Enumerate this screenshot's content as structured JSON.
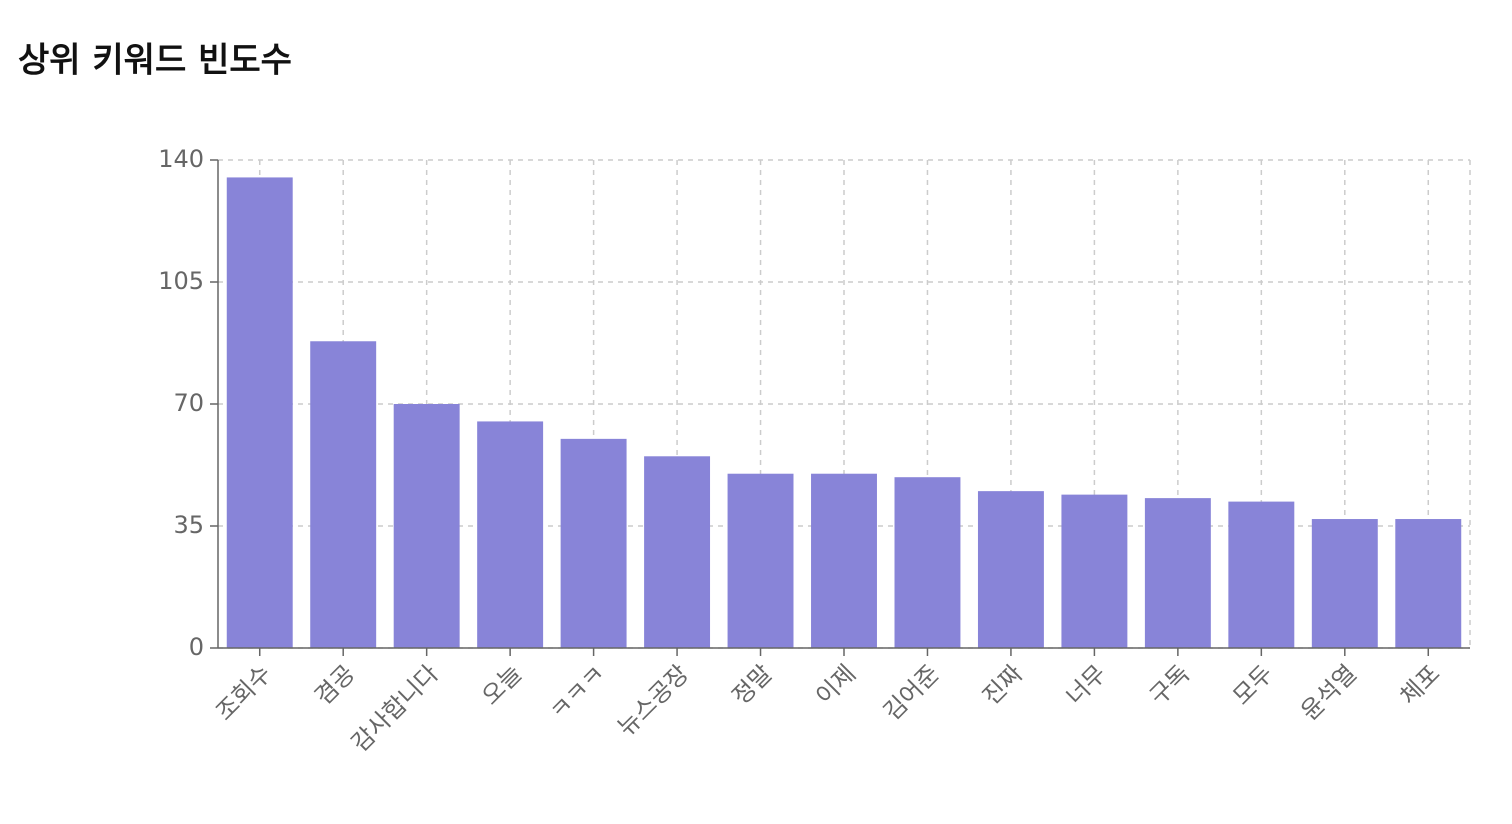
{
  "chart_data": {
    "type": "bar",
    "title": "상위 키워드 빈도수",
    "categories": [
      "조회수",
      "겸공",
      "감사합니다",
      "오늘",
      "ㅋㅋㅋ",
      "뉴스공장",
      "정말",
      "이제",
      "김어준",
      "진짜",
      "너무",
      "구독",
      "모두",
      "윤석열",
      "체포"
    ],
    "values": [
      135,
      88,
      70,
      65,
      60,
      55,
      50,
      50,
      49,
      45,
      44,
      43,
      42,
      37,
      37
    ],
    "color": "#8884d8",
    "ylim": [
      0,
      140
    ],
    "yticks": [
      0,
      35,
      70,
      105,
      140
    ],
    "grid": true
  }
}
